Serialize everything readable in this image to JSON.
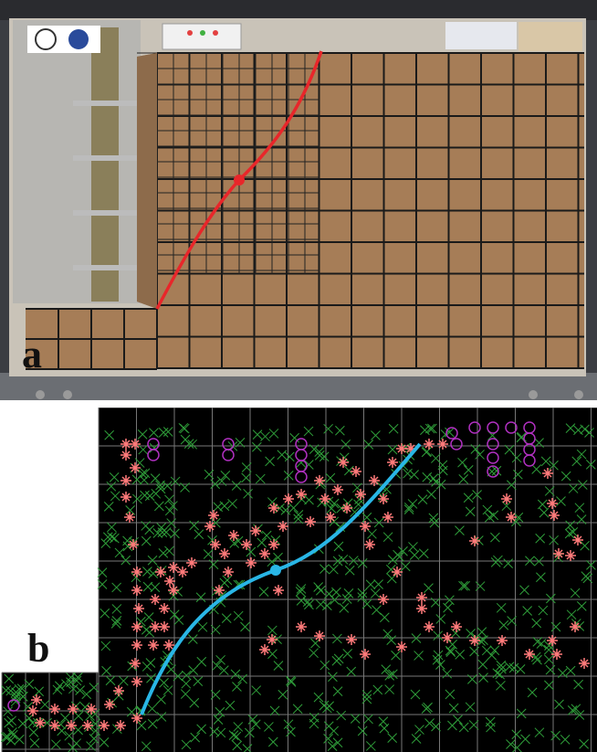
{
  "figure": {
    "panel_a": {
      "label": "a"
    },
    "panel_b": {
      "label": "b"
    }
  },
  "colors": {
    "sand_block": "#a67d57",
    "grid_line": "#1a1a1a",
    "failure_curve_a": "#e8262a",
    "failure_curve_b": "#29b6e6",
    "marker_cross": "#2f9e3a",
    "marker_asterisk": "#ff7a7a",
    "marker_circle": "#b030c0",
    "plot_background": "#000000"
  },
  "icons": [
    "university-logo-1",
    "university-logo-2",
    "control-box",
    "info-poster",
    "load-rod"
  ]
}
